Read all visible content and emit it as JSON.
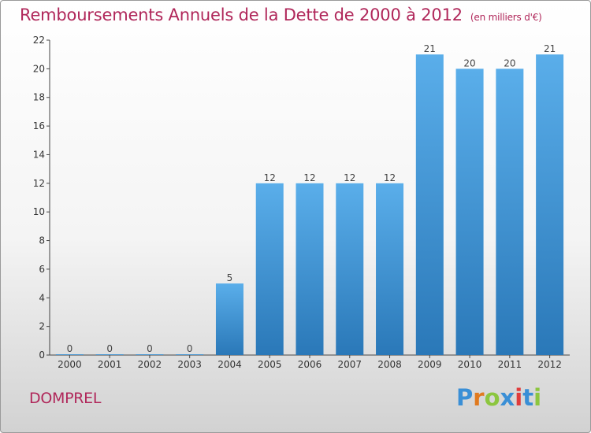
{
  "header": {
    "title": "Remboursements Annuels de la Dette de 2000 à 2012",
    "unit": "(en milliers d'€)"
  },
  "footer": {
    "city": "DOMPREL",
    "logo_letters": [
      "P",
      "r",
      "o",
      "x",
      "i",
      "t",
      "i"
    ],
    "logo_colors": [
      "#3a8fd6",
      "#e07a1f",
      "#8cc63f",
      "#3a8fd6",
      "#e03c3c",
      "#3a8fd6",
      "#8cc63f"
    ]
  },
  "chart_data": {
    "type": "bar",
    "title": "Remboursements Annuels de la Dette de 2000 à 2012",
    "subtitle": "(en milliers d'€)",
    "xlabel": "",
    "ylabel": "",
    "categories": [
      "2000",
      "2001",
      "2002",
      "2003",
      "2004",
      "2005",
      "2006",
      "2007",
      "2008",
      "2009",
      "2010",
      "2011",
      "2012"
    ],
    "values": [
      0,
      0,
      0,
      0,
      5,
      12,
      12,
      12,
      12,
      21,
      20,
      20,
      21
    ],
    "ylim": [
      0,
      22
    ],
    "yticks": [
      0,
      2,
      4,
      6,
      8,
      10,
      12,
      14,
      16,
      18,
      20,
      22
    ],
    "grid": false,
    "legend": "none",
    "bar_color_top": "#5aaeea",
    "bar_color_bottom": "#2a78b8"
  }
}
